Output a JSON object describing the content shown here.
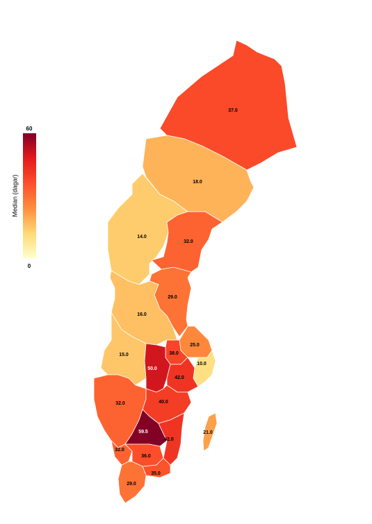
{
  "chart_data": {
    "type": "choropleth",
    "colorbar_title": "Median (dagar)",
    "clim": [
      0,
      60
    ],
    "cticks": [
      0,
      60
    ],
    "colorscale": [
      "#ffffcc",
      "#fed976",
      "#fd8d3c",
      "#fc4e2a",
      "#e31a1c",
      "#800026"
    ],
    "values": [
      37,
      18,
      14,
      32,
      29,
      16,
      25,
      10,
      15,
      38,
      50,
      42,
      32,
      40,
      59.5,
      42,
      21,
      32,
      36,
      35,
      29
    ],
    "value_labels": [
      "37.0",
      "18.0",
      "14.0",
      "32.0",
      "29.0",
      "16.0",
      "25.0",
      "10.0",
      "15.0",
      "38.0",
      "50.0",
      "42.0",
      "32.0",
      "40.0",
      "59.5",
      "42.0",
      "21.0",
      "32.0",
      "36.0",
      "35.0",
      "29.0"
    ]
  }
}
